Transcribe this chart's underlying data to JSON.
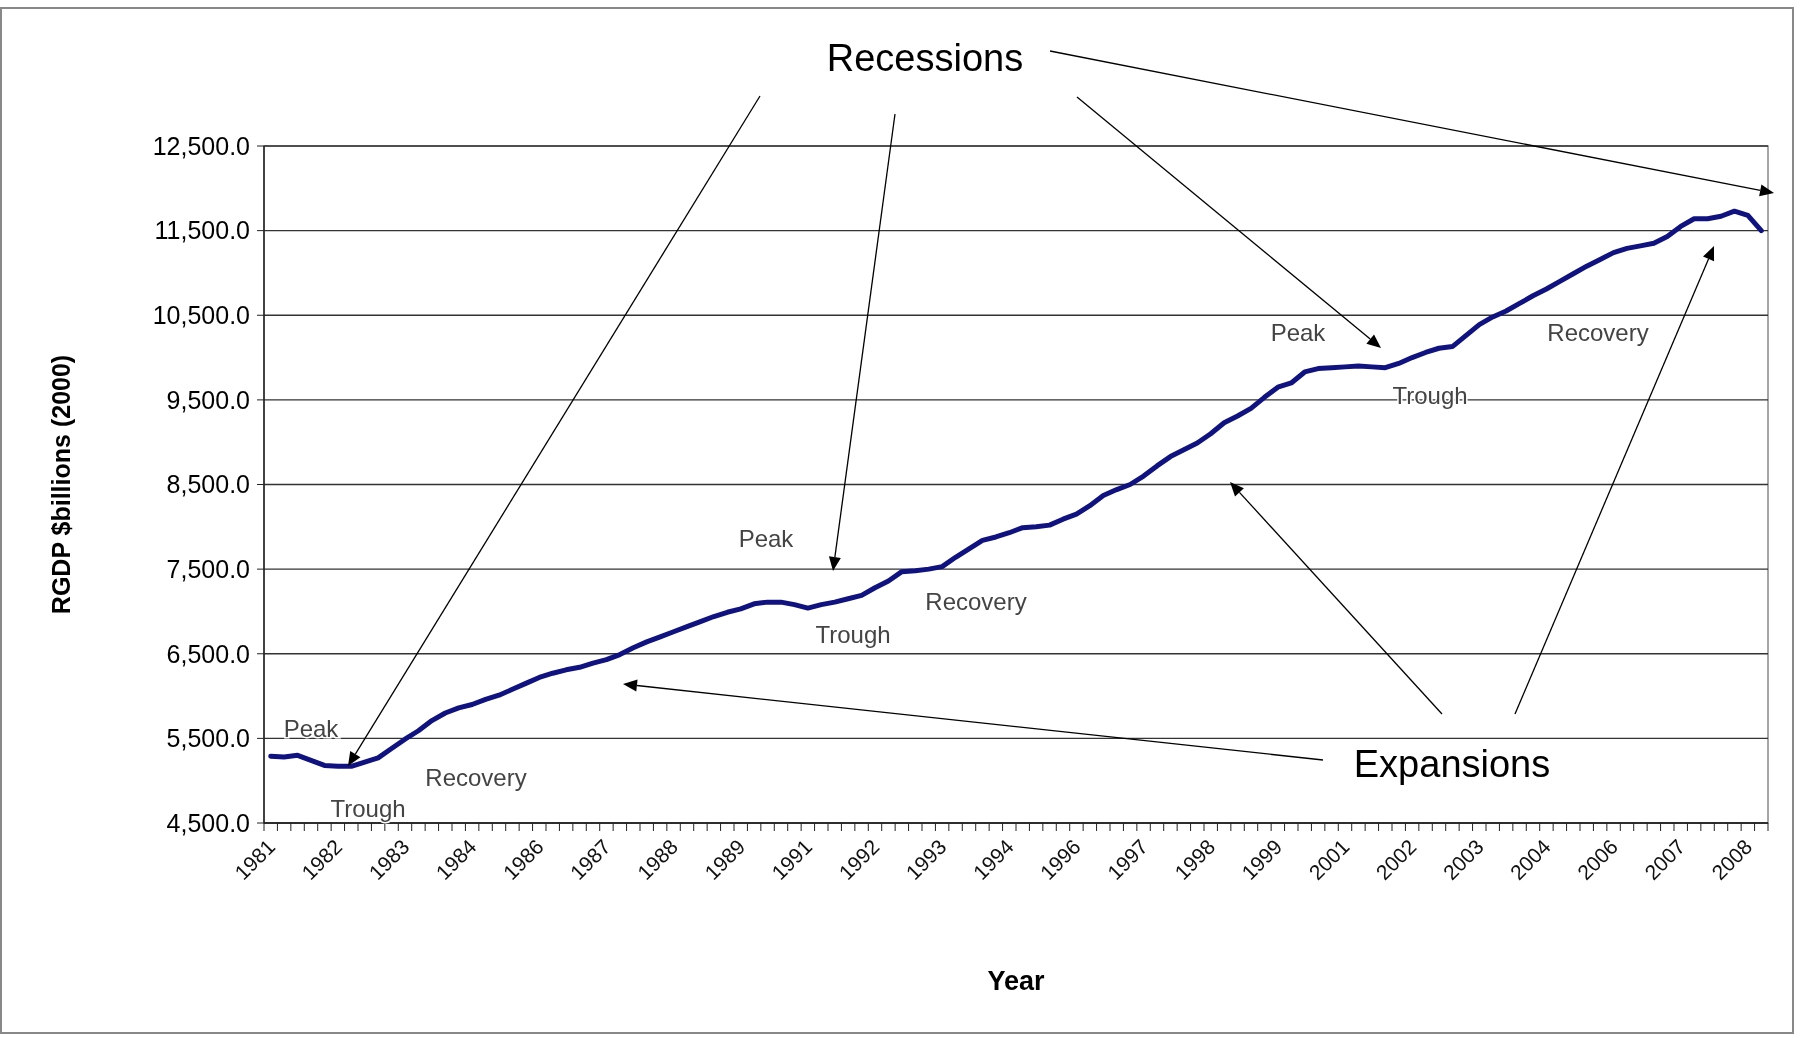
{
  "chart_data": {
    "type": "line",
    "xlabel": "Year",
    "ylabel": "RGDP $billions (2000)",
    "categories": [
      "1981",
      null,
      null,
      null,
      null,
      "1982",
      null,
      null,
      null,
      null,
      "1983",
      null,
      null,
      null,
      null,
      "1984",
      null,
      null,
      null,
      null,
      "1986",
      null,
      null,
      null,
      null,
      "1987",
      null,
      null,
      null,
      null,
      "1988",
      null,
      null,
      null,
      null,
      "1989",
      null,
      null,
      null,
      null,
      "1991",
      null,
      null,
      null,
      null,
      "1992",
      null,
      null,
      null,
      null,
      "1993",
      null,
      null,
      null,
      null,
      "1994",
      null,
      null,
      null,
      null,
      "1996",
      null,
      null,
      null,
      null,
      "1997",
      null,
      null,
      null,
      null,
      "1998",
      null,
      null,
      null,
      null,
      "1999",
      null,
      null,
      null,
      null,
      "2001",
      null,
      null,
      null,
      null,
      "2002",
      null,
      null,
      null,
      null,
      "2003",
      null,
      null,
      null,
      null,
      "2004",
      null,
      null,
      null,
      null,
      "2006",
      null,
      null,
      null,
      null,
      "2007",
      null,
      null,
      null,
      null,
      "2008",
      null
    ],
    "series": [
      {
        "color": "#10137f",
        "values": [
          5290,
          5280,
          5300,
          5240,
          5180,
          5170,
          5170,
          5220,
          5270,
          5380,
          5490,
          5590,
          5710,
          5800,
          5860,
          5900,
          5960,
          6010,
          6080,
          6150,
          6220,
          6270,
          6310,
          6340,
          6390,
          6430,
          6490,
          6570,
          6640,
          6700,
          6760,
          6820,
          6880,
          6940,
          6990,
          7030,
          7090,
          7110,
          7110,
          7080,
          7040,
          7080,
          7110,
          7150,
          7190,
          7280,
          7360,
          7470,
          7480,
          7500,
          7530,
          7640,
          7740,
          7840,
          7880,
          7930,
          7990,
          8000,
          8020,
          8090,
          8150,
          8250,
          8370,
          8440,
          8500,
          8600,
          8720,
          8830,
          8910,
          8990,
          9100,
          9230,
          9310,
          9400,
          9530,
          9650,
          9700,
          9830,
          9870,
          9880,
          9890,
          9900,
          9890,
          9880,
          9930,
          10000,
          10060,
          10110,
          10130,
          10260,
          10390,
          10480,
          10550,
          10640,
          10730,
          10810,
          10900,
          10990,
          11080,
          11160,
          11240,
          11290,
          11320,
          11350,
          11430,
          11550,
          11640,
          11640,
          11670,
          11730,
          11680,
          11500
        ]
      }
    ],
    "ylim": [
      4500,
      12500
    ],
    "yticks": [
      {
        "value": 4500,
        "label": "4,500.0"
      },
      {
        "value": 5500,
        "label": "5,500.0"
      },
      {
        "value": 6500,
        "label": "6,500.0"
      },
      {
        "value": 7500,
        "label": "7,500.0"
      },
      {
        "value": 8500,
        "label": "8,500.0"
      },
      {
        "value": 9500,
        "label": "9,500.0"
      },
      {
        "value": 10500,
        "label": "10,500.0"
      },
      {
        "value": 11500,
        "label": "11,500.0"
      },
      {
        "value": 12500,
        "label": "12,500.0"
      }
    ],
    "grid": "y",
    "marker": "none",
    "line_style": "solid",
    "annotations": [
      "Recessions",
      "Expansions",
      "Peak",
      "Trough",
      "Recovery",
      "Peak",
      "Trough",
      "Recovery",
      "Peak",
      "Trough",
      "Recovery"
    ]
  }
}
